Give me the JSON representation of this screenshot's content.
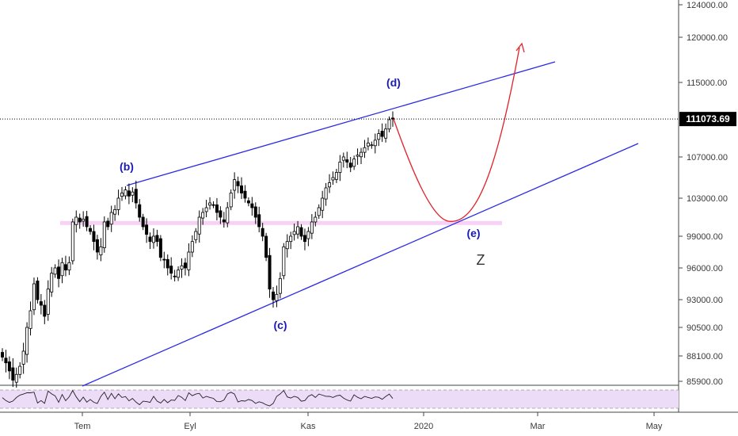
{
  "chart_data": {
    "type": "candlestick",
    "colors": {
      "up": "#ffffff",
      "down": "#000000",
      "trendline": "#2a2ae6",
      "projection": "#e3202a",
      "zone": "#f7c9f4",
      "rsi_bg": "#eddcf8",
      "wave_label": "#1a1ab8",
      "last_bg": "#000000"
    },
    "y_ticks": [
      "124000.00",
      "120000.00",
      "115000.00",
      "107000.00",
      "103000.00",
      "99000.00",
      "96000.00",
      "93000.00",
      "90500.00",
      "88100.00",
      "85900.00"
    ],
    "x_ticks": [
      "Tem",
      "Eyl",
      "Kas",
      "2020",
      "Mar",
      "May"
    ],
    "last_value": "111073.69",
    "wave_labels": [
      "(b)",
      "(c)",
      "(d)",
      "(e)",
      "Z"
    ],
    "closes": [
      88000,
      87500,
      86800,
      86000,
      86500,
      87200,
      88500,
      90500,
      92000,
      94500,
      93000,
      92500,
      91500,
      94000,
      95500,
      96000,
      95000,
      96500,
      95800,
      96500,
      100500,
      101000,
      100500,
      100800,
      100000,
      99500,
      98500,
      97500,
      98000,
      100500,
      100000,
      101500,
      101800,
      103000,
      103500,
      103800,
      103200,
      103600,
      102500,
      101000,
      100000,
      99200,
      98500,
      99000,
      98500,
      97000,
      96800,
      96000,
      95500,
      95200,
      95800,
      96200,
      96000,
      97500,
      98500,
      99500,
      101000,
      101500,
      102000,
      102500,
      102300,
      101500,
      101000,
      100500,
      102000,
      103500,
      104800,
      104200,
      103500,
      103000,
      102500,
      102000,
      101000,
      100000,
      99000,
      97000,
      94000,
      93000,
      93500,
      95000,
      98000,
      98500,
      99000,
      99500,
      100000,
      99000,
      98500,
      99500,
      100500,
      101000,
      102000,
      103000,
      104000,
      104500,
      105000,
      105500,
      106500,
      107000,
      106500,
      106000,
      106800,
      107200,
      107500,
      108000,
      108500,
      108300,
      108800,
      109500,
      109200,
      110000,
      111000,
      111073.69
    ]
  }
}
